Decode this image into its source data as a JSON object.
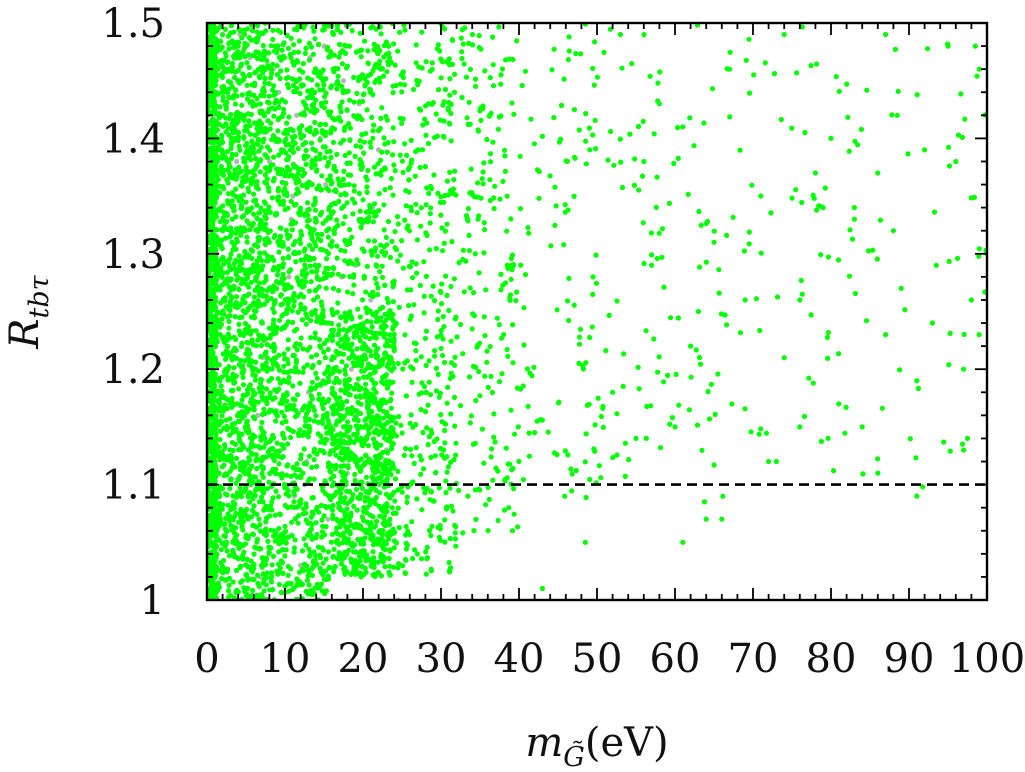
{
  "chart_data": {
    "type": "scatter",
    "title": "",
    "xlabel": "m_G̃(eV)",
    "xlabel_parts": {
      "base": "m",
      "sub": "G̃",
      "unit": "(eV)"
    },
    "ylabel": "R_tbτ",
    "ylabel_parts": {
      "base": "R",
      "sub": "tbτ"
    },
    "xlim": [
      0,
      100
    ],
    "ylim": [
      1.0,
      1.5
    ],
    "xticks": [
      0,
      10,
      20,
      30,
      40,
      50,
      60,
      70,
      80,
      90,
      100
    ],
    "xtick_labels": [
      "0",
      "10",
      "20",
      "30",
      "40",
      "50",
      "60",
      "70",
      "80",
      "90",
      "100"
    ],
    "yticks": [
      1.0,
      1.1,
      1.2,
      1.3,
      1.4,
      1.5
    ],
    "ytick_labels": [
      "1",
      "1.1",
      "1.2",
      "1.3",
      "1.4",
      "1.5"
    ],
    "x_minor_step": 2,
    "y_minor_step": 0.02,
    "grid": false,
    "legend": "none",
    "reference_lines": [
      {
        "orientation": "horizontal",
        "y": 1.1,
        "style": "dashed",
        "color": "#000000"
      }
    ],
    "series": [
      {
        "color": "#b5b5b5",
        "marker": "point",
        "points": [
          [
            0.3,
            1.02
          ],
          [
            0.5,
            1.08
          ],
          [
            0.8,
            1.15
          ],
          [
            1.0,
            1.22
          ],
          [
            1.2,
            1.3
          ],
          [
            1.5,
            1.37
          ],
          [
            1.8,
            1.44
          ],
          [
            2.0,
            1.49
          ],
          [
            2.5,
            1.05
          ],
          [
            3.0,
            1.12
          ],
          [
            3.5,
            1.19
          ],
          [
            4.0,
            1.27
          ],
          [
            4.5,
            1.34
          ],
          [
            5.0,
            1.41
          ],
          [
            5.5,
            1.47
          ],
          [
            6.0,
            1.09
          ],
          [
            6.5,
            1.16
          ],
          [
            7.0,
            1.24
          ],
          [
            7.5,
            1.31
          ],
          [
            8.0,
            1.38
          ],
          [
            8.5,
            1.46
          ],
          [
            9.0,
            1.06
          ],
          [
            9.5,
            1.13
          ],
          [
            10.0,
            1.21
          ],
          [
            10.5,
            1.28
          ],
          [
            11.0,
            1.35
          ],
          [
            11.5,
            1.42
          ],
          [
            12.0,
            1.03
          ],
          [
            12.5,
            1.1
          ],
          [
            13.0,
            1.18
          ],
          [
            13.5,
            1.25
          ],
          [
            14.0,
            1.33
          ],
          [
            14.5,
            1.4
          ],
          [
            15.0,
            1.48
          ],
          [
            15.5,
            1.07
          ],
          [
            16.0,
            1.14
          ],
          [
            16.5,
            1.23
          ],
          [
            17.0,
            1.36
          ],
          [
            17.5,
            1.45
          ],
          [
            18.0,
            1.11
          ],
          [
            18.5,
            1.2
          ],
          [
            19.0,
            1.29
          ],
          [
            19.5,
            1.43
          ],
          [
            20.0,
            1.04
          ],
          [
            20.5,
            1.17
          ],
          [
            21.0,
            1.26
          ],
          [
            22.0,
            1.39
          ],
          [
            23.0,
            1.13
          ],
          [
            2.2,
            1.46
          ],
          [
            3.8,
            1.38
          ],
          [
            5.2,
            1.3
          ],
          [
            7.2,
            1.21
          ],
          [
            9.2,
            1.44
          ],
          [
            11.2,
            1.09
          ],
          [
            13.2,
            1.47
          ],
          [
            15.2,
            1.36
          ],
          [
            17.2,
            1.28
          ],
          [
            19.2,
            1.16
          ],
          [
            21.2,
            1.34
          ],
          [
            12.8,
            1.12
          ],
          [
            14.8,
            1.19
          ],
          [
            16.8,
            1.08
          ],
          [
            18.8,
            1.42
          ],
          [
            8.8,
            1.26
          ],
          [
            24.5,
            1.0
          ],
          [
            6.8,
            1.02
          ],
          [
            4.2,
            1.49
          ],
          [
            10.8,
            1.33
          ]
        ]
      },
      {
        "color": "#00ff00",
        "marker": "point",
        "dense_bands": [
          {
            "x": [
              0,
              1.2
            ],
            "y": [
              1.0,
              1.5
            ],
            "count": 900
          },
          {
            "x": [
              1.0,
              8
            ],
            "y": [
              1.0,
              1.5
            ],
            "count": 1400
          },
          {
            "x": [
              8,
              16
            ],
            "y": [
              1.0,
              1.5
            ],
            "count": 1100
          },
          {
            "x": [
              16,
              24
            ],
            "y": [
              1.02,
              1.25
            ],
            "count": 900
          },
          {
            "x": [
              16,
              24
            ],
            "y": [
              1.25,
              1.5
            ],
            "count": 350
          },
          {
            "x": [
              24,
              32
            ],
            "y": [
              1.02,
              1.5
            ],
            "count": 380
          },
          {
            "x": [
              32,
              40
            ],
            "y": [
              1.05,
              1.5
            ],
            "count": 200
          },
          {
            "x": [
              40,
              50
            ],
            "y": [
              1.08,
              1.5
            ],
            "count": 110
          },
          {
            "x": [
              50,
              60
            ],
            "y": [
              1.1,
              1.5
            ],
            "count": 70
          },
          {
            "x": [
              60,
              70
            ],
            "y": [
              1.06,
              1.5
            ],
            "count": 55
          },
          {
            "x": [
              70,
              80
            ],
            "y": [
              1.12,
              1.5
            ],
            "count": 40
          },
          {
            "x": [
              80,
              90
            ],
            "y": [
              1.1,
              1.5
            ],
            "count": 32
          },
          {
            "x": [
              90,
              100
            ],
            "y": [
              1.09,
              1.5
            ],
            "count": 30
          }
        ],
        "points": [
          [
            43.0,
            1.01
          ],
          [
            48.5,
            1.05
          ],
          [
            61.0,
            1.05
          ],
          [
            64.0,
            1.07
          ],
          [
            66.0,
            1.07
          ],
          [
            91.0,
            1.09
          ],
          [
            97.0,
            1.13
          ],
          [
            97.5,
            1.14
          ],
          [
            86.0,
            1.11
          ],
          [
            72.0,
            1.12
          ],
          [
            73.0,
            1.12
          ],
          [
            76.0,
            1.15
          ],
          [
            81.0,
            1.17
          ],
          [
            84.0,
            1.15
          ],
          [
            91.0,
            1.19
          ],
          [
            93.0,
            1.24
          ],
          [
            97.0,
            1.2
          ],
          [
            99.0,
            1.23
          ],
          [
            87.0,
            1.23
          ],
          [
            74.0,
            1.21
          ],
          [
            63.0,
            1.25
          ],
          [
            69.0,
            1.26
          ],
          [
            76.0,
            1.26
          ],
          [
            89.0,
            1.27
          ],
          [
            93.5,
            1.29
          ],
          [
            98.0,
            1.26
          ],
          [
            100.0,
            1.3
          ],
          [
            88.0,
            1.32
          ],
          [
            83.0,
            1.34
          ],
          [
            71.0,
            1.35
          ],
          [
            78.0,
            1.37
          ],
          [
            86.0,
            1.37
          ],
          [
            92.0,
            1.39
          ],
          [
            96.0,
            1.38
          ],
          [
            99.0,
            1.46
          ],
          [
            88.5,
            1.42
          ],
          [
            80.0,
            1.4
          ],
          [
            74.0,
            1.49
          ],
          [
            61.0,
            1.41
          ],
          [
            67.0,
            1.46
          ],
          [
            87.0,
            1.49
          ],
          [
            95.0,
            1.48
          ],
          [
            98.5,
            1.48
          ],
          [
            79.0,
            1.34
          ],
          [
            83.0,
            1.33
          ],
          [
            56.0,
            1.38
          ],
          [
            58.0,
            1.43
          ],
          [
            53.0,
            1.49
          ],
          [
            65.0,
            1.31
          ],
          [
            62.0,
            1.22
          ],
          [
            60.0,
            1.15
          ],
          [
            55.0,
            1.14
          ],
          [
            52.0,
            1.18
          ],
          [
            57.0,
            1.29
          ]
        ]
      }
    ]
  }
}
